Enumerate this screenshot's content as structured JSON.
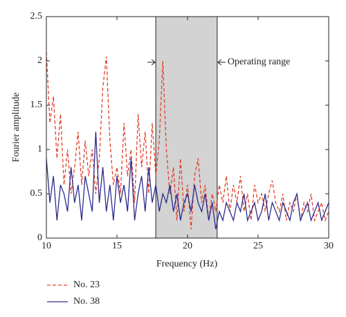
{
  "chart_data": {
    "type": "line",
    "xlabel": "Frequency (Hz)",
    "ylabel": "Fourier amplitude",
    "x": [
      10,
      10.25,
      10.5,
      10.75,
      11,
      11.25,
      11.5,
      11.75,
      12,
      12.25,
      12.5,
      12.75,
      13,
      13.25,
      13.5,
      13.75,
      14,
      14.25,
      14.5,
      14.75,
      15,
      15.25,
      15.5,
      15.75,
      16,
      16.25,
      16.5,
      16.75,
      17,
      17.25,
      17.5,
      17.75,
      18,
      18.25,
      18.5,
      18.75,
      19,
      19.25,
      19.5,
      19.75,
      20,
      20.25,
      20.5,
      20.75,
      21,
      21.25,
      21.5,
      21.75,
      22,
      22.25,
      22.5,
      22.75,
      23,
      23.25,
      23.5,
      23.75,
      24,
      24.25,
      24.5,
      24.75,
      25,
      25.25,
      25.5,
      25.75,
      26,
      26.25,
      26.5,
      26.75,
      27,
      27.25,
      27.5,
      27.75,
      28,
      28.25,
      28.5,
      28.75,
      29,
      29.25,
      29.5,
      29.75,
      30
    ],
    "series": [
      {
        "name": "No. 23",
        "color": "#e0402a",
        "dashed": true,
        "values": [
          2.1,
          1.3,
          1.6,
          0.9,
          1.4,
          0.6,
          1.0,
          0.5,
          0.8,
          1.2,
          0.6,
          1.1,
          0.7,
          1.0,
          0.5,
          0.9,
          1.7,
          2.05,
          1.1,
          0.6,
          0.8,
          0.5,
          1.3,
          0.7,
          1.0,
          0.4,
          1.4,
          0.8,
          1.2,
          0.5,
          1.3,
          0.7,
          1.1,
          2.0,
          1.0,
          0.5,
          0.8,
          0.2,
          0.9,
          0.3,
          0.6,
          0.1,
          0.7,
          0.9,
          0.4,
          0.6,
          0.2,
          0.5,
          0.3,
          0.6,
          0.4,
          0.7,
          0.3,
          0.6,
          0.4,
          0.7,
          0.3,
          0.5,
          0.2,
          0.6,
          0.4,
          0.5,
          0.3,
          0.5,
          0.65,
          0.4,
          0.3,
          0.5,
          0.2,
          0.4,
          0.3,
          0.5,
          0.2,
          0.4,
          0.3,
          0.5,
          0.2,
          0.3,
          0.4,
          0.2,
          0.3
        ]
      },
      {
        "name": "No. 38",
        "color": "#2b2a8c",
        "dashed": false,
        "values": [
          0.9,
          0.4,
          0.7,
          0.2,
          0.6,
          0.5,
          0.3,
          0.8,
          0.4,
          0.6,
          0.2,
          0.7,
          0.5,
          0.3,
          1.2,
          0.4,
          0.8,
          0.3,
          0.6,
          0.2,
          0.7,
          0.4,
          0.6,
          0.3,
          0.9,
          0.2,
          0.5,
          0.7,
          0.3,
          0.8,
          0.4,
          0.6,
          0.3,
          0.5,
          0.4,
          0.6,
          0.3,
          0.5,
          0.2,
          0.4,
          0.5,
          0.3,
          0.6,
          0.4,
          0.3,
          0.5,
          0.2,
          0.4,
          0.1,
          0.3,
          0.2,
          0.4,
          0.3,
          0.2,
          0.4,
          0.3,
          0.5,
          0.2,
          0.3,
          0.4,
          0.2,
          0.3,
          0.5,
          0.2,
          0.4,
          0.3,
          0.2,
          0.4,
          0.3,
          0.2,
          0.4,
          0.5,
          0.2,
          0.3,
          0.4,
          0.2,
          0.3,
          0.4,
          0.2,
          0.3,
          0.4
        ]
      }
    ],
    "shade": [
      17.75,
      22.1
    ],
    "shade_color": "#d3d3d3",
    "annotation": "Operating range",
    "xlim": [
      10,
      30
    ],
    "xticks": [
      10,
      15,
      20,
      25,
      30
    ],
    "ylim": [
      0,
      2.5
    ],
    "yticks": [
      0,
      0.5,
      1,
      1.5,
      2,
      2.5
    ]
  }
}
